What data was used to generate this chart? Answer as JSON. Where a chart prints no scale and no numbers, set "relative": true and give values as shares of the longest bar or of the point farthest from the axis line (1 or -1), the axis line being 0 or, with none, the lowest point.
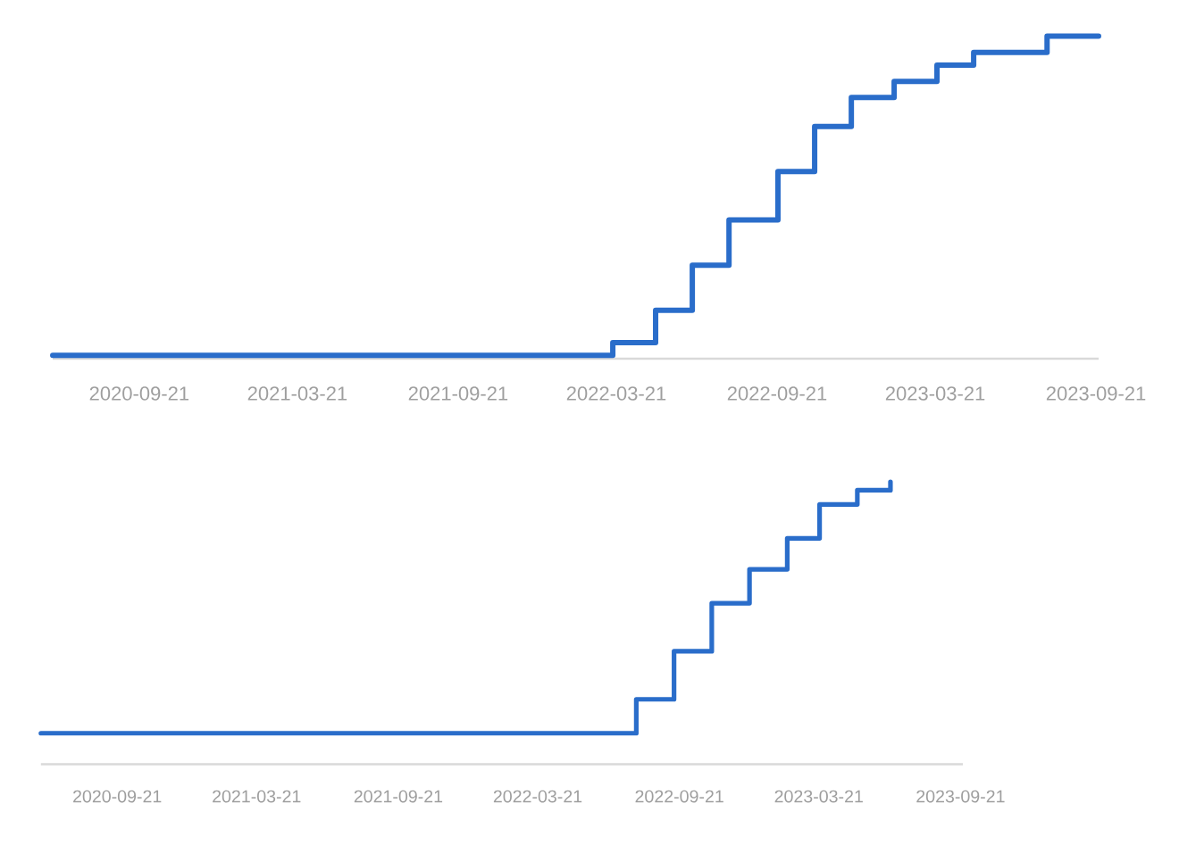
{
  "chart_data": [
    {
      "type": "step",
      "x": [
        "2020-06-14",
        "2022-03-17",
        "2022-05-05",
        "2022-06-16",
        "2022-07-28",
        "2022-09-22",
        "2022-11-03",
        "2022-12-15",
        "2023-02-02",
        "2023-03-23",
        "2023-05-04",
        "2023-07-27",
        "2023-09-24"
      ],
      "values": [
        0.01,
        0.05,
        0.15,
        0.29,
        0.43,
        0.58,
        0.72,
        0.81,
        0.86,
        0.91,
        0.95,
        1.0,
        1.0
      ],
      "color": "#2a6dca",
      "relative": true,
      "xlim": [
        "2020-06-14",
        "2023-09-24"
      ],
      "xticks": [
        "2020-09-21",
        "2021-03-21",
        "2021-09-21",
        "2022-03-21",
        "2022-09-21",
        "2023-03-21",
        "2023-09-21"
      ]
    },
    {
      "type": "step",
      "x": [
        "2020-06-14",
        "2022-07-27",
        "2022-09-14",
        "2022-11-02",
        "2022-12-21",
        "2023-02-08",
        "2023-03-22",
        "2023-05-10",
        "2023-06-22"
      ],
      "values": [
        0.11,
        0.23,
        0.4,
        0.57,
        0.69,
        0.8,
        0.92,
        0.97,
        1.0
      ],
      "color": "#2a6dca",
      "relative": true,
      "xlim": [
        "2020-06-14",
        "2023-09-24"
      ],
      "xticks": [
        "2020-09-21",
        "2021-03-21",
        "2021-09-21",
        "2022-03-21",
        "2022-09-21",
        "2023-03-21",
        "2023-09-21"
      ]
    }
  ]
}
